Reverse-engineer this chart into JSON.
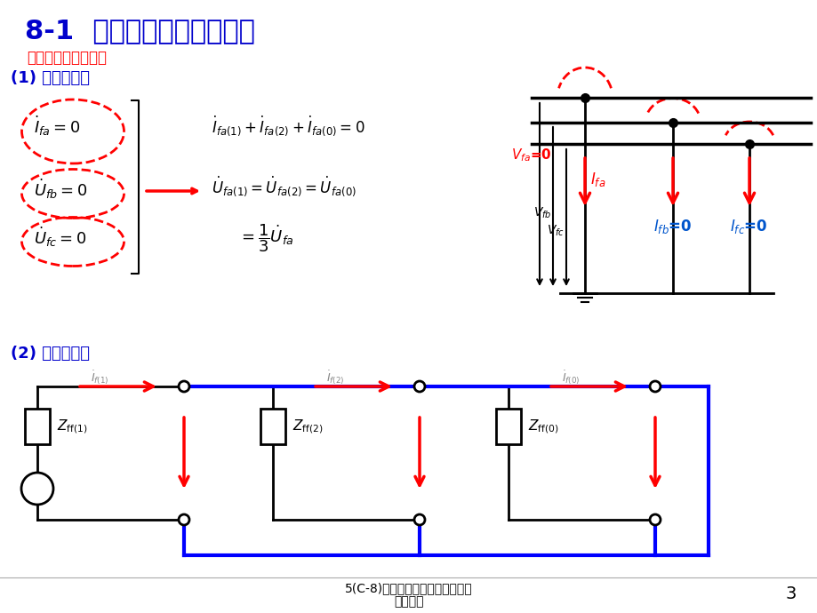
{
  "title": "8-1  简单不对称短路的分析",
  "title_color": "#0000CC",
  "bg_color": "#FFFFFF",
  "section1_color": "#FF0000",
  "section1_text": "一、单相接地短路：",
  "section2_color": "#0000CC",
  "section2_text": "(1) 边界条件：",
  "section3_text": "(2) 复合序网：",
  "footer_line1": "5(C-8)不对称故障分析－电力系统",
  "footer_line2": "湖南大学",
  "page_num": "3"
}
